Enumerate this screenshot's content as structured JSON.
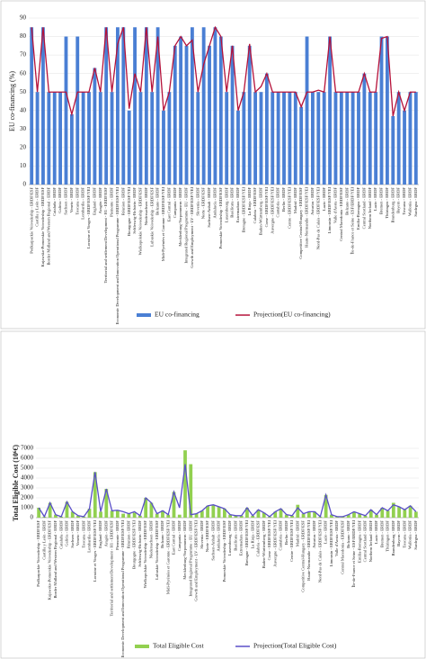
{
  "chart_data": [
    {
      "type": "bar",
      "y_label": "EU co-financing (%)",
      "categories": [
        "Podkarpackie Voivodeship - ERDF/ESF",
        "Castilla y León - ERDF",
        "Kujawsko-Pomorskie Voivodeship - ERDF/ESF",
        "Border Midland and Western Regional - ERDF",
        "Cataluña - ERDF",
        "Galicia - ERDF",
        "Sachsen - ERDF",
        "Veneto - ERDF",
        "Toscana - ERDF",
        "Lombardia - ERDF",
        "Lorraine et Vosges - ERDF/ESF/YEI",
        "England - ERDF",
        "Aragón - ERDF",
        "Territorial and settlement Development - H1 - ERDF/ESF",
        "Piemonte - ERDF",
        "Economic Development and Innovation Operational Programme - ERDF/ESF/YEI",
        "Réunion - ERDF",
        "Bourgogne - ERDF/ESF/YEI",
        "Schleswig-Holstein - ERDF",
        "Wielkopolskie Voivodeship - ERDF/ESF",
        "Niedersachsen - ERDF",
        "Lubuskie Voivodeship - ERDF/ESF",
        "Bolzano - ERDF",
        "Midi-Pyrénées et Garonne - ERDF/ESF/YEI",
        "East Central - ERDF",
        "Campania - ERDF",
        "Mecklenburg-Vorpommern - ERDF",
        "Integrated Regional Programme - EU - ERDF",
        "Growth and Employment - LV - ERDF/ESF/YEI",
        "Slovenia - ERDF",
        "Norte - ERDF/ESF",
        "Sachsen-Anhalt - ERDF",
        "Andalucía - ERDF",
        "Pomorskie Voivodeship - ERDF/ESF",
        "Luxembourg - ERDF",
        "Basilicata - ERDF",
        "Extremadura - ERDF",
        "Bretagne - ERDF/ESF/YEI",
        "La Rioja - ERDF",
        "Calabria - ERDF/ESF",
        "Baden-Württemberg - ERDF",
        "Corse - ERDF/ESF/YEI",
        "Auvergne - ERDF/ESF/YEI",
        "Cantabria - ERDF",
        "Berlin - ERDF",
        "Centre - ERDF/ESF/YEI",
        "Madrid - ERDF",
        "Competitive Central-Hungary - ERDF/ESF",
        "Haute-Normandie - ERDF/ESF/YEI",
        "Asturias - ERDF",
        "Nord-Pas de Calais - ERDF/ESF/YEI",
        "Lazio - ERDF",
        "Limousin - ERDF/ESF/YEI",
        "Valle d'Aosta - ERDF",
        "Central Macedonia - ERDF/ESF",
        "Bolzano - ERDF",
        "Île-de-France et Seine - ESF/ERDF/YEI",
        "Emilia-Romagna - ERDF",
        "Central Scotland - ERDF",
        "Northern Ireland - ERDF",
        "Lazio - ERDF",
        "Bremen - ERDF",
        "Thüringen - ERDF",
        "Brandenburg - ERDF",
        "Bayern - ERDF",
        "Toscana - ERDF",
        "Wallonia - ERDF",
        "Sardegna - ERDF"
      ],
      "series": [
        {
          "name": "EU co-financing",
          "type": "bar",
          "color": "#4a7fd4",
          "values": [
            85,
            50,
            85,
            50,
            50,
            50,
            80,
            38,
            80,
            50,
            50,
            63,
            50,
            85,
            50,
            85,
            85,
            40,
            85,
            50,
            85,
            50,
            85,
            40,
            50,
            75,
            80,
            75,
            85,
            50,
            85,
            75,
            85,
            80,
            50,
            75,
            40,
            50,
            75,
            50,
            50,
            60,
            50,
            50,
            50,
            50,
            50,
            42,
            80,
            50,
            50,
            50,
            80,
            50,
            50,
            50,
            50,
            50,
            60,
            50,
            50,
            80,
            80,
            37,
            50,
            40,
            50,
            50
          ]
        },
        {
          "name": "Projection(EU co-financing)",
          "type": "line",
          "color": "#b5123a",
          "values": [
            85,
            50,
            85,
            50,
            50,
            50,
            50,
            38,
            50,
            50,
            50,
            63,
            50,
            85,
            50,
            76,
            85,
            41,
            60,
            50,
            85,
            50,
            80,
            40,
            50,
            75,
            80,
            75,
            78,
            50,
            65,
            75,
            85,
            80,
            50,
            75,
            40,
            50,
            76,
            50,
            53,
            60,
            50,
            50,
            50,
            50,
            50,
            42,
            50,
            50,
            51,
            50,
            80,
            50,
            50,
            50,
            50,
            50,
            60,
            50,
            50,
            79,
            80,
            37,
            50,
            40,
            50,
            50
          ]
        }
      ],
      "ylim": [
        0,
        90
      ],
      "yticks": [
        0,
        10,
        20,
        30,
        40,
        50,
        60,
        70,
        80,
        90
      ]
    },
    {
      "type": "bar",
      "y_label": "Total Eligible Cost (10⁶€)",
      "categories": [
        "Podkarpackie Voivodeship - ERDF/ESF",
        "Castilla y León - ERDF",
        "Kujawsko-Pomorskie Voivodeship - ERDF/ESF",
        "Border Midland and Western Regional - ERDF",
        "Cataluña - ERDF",
        "Galicia - ERDF",
        "Sachsen - ERDF",
        "Veneto - ERDF",
        "Toscana - ERDF",
        "Lombardia - ERDF",
        "Lorraine et Vosges - ERDF/ESF/YEI",
        "England - ERDF",
        "Aragón - ERDF",
        "Territorial and settlement Development - H1 - ERDF/ESF",
        "Piemonte - ERDF",
        "Economic Development and Innovation Operational Programme - ERDF/ESF/YEI",
        "Réunion - ERDF",
        "Bourgogne - ERDF/ESF/YEI",
        "Schleswig-Holstein - ERDF",
        "Wielkopolskie Voivodeship - ERDF/ESF",
        "Niedersachsen - ERDF",
        "Lubuskie Voivodeship - ERDF/ESF",
        "Bolzano - ERDF",
        "Midi-Pyrénées et Garonne - ERDF/ESF/YEI",
        "East Central - ERDF",
        "Campania - ERDF",
        "Mecklenburg-Vorpommern - ERDF",
        "Integrated Regional Programme - EU - ERDF",
        "Growth and Employment - LV - ERDF/ESF/YEI",
        "Slovenia - ERDF",
        "Norte - ERDF/ESF",
        "Sachsen-Anhalt - ERDF",
        "Andalucía - ERDF",
        "Pomorskie Voivodeship - ERDF/ESF",
        "Luxembourg - ERDF",
        "Basilicata - ERDF",
        "Extremadura - ERDF",
        "Bretagne - ERDF/ESF/YEI",
        "La Rioja - ERDF",
        "Calabria - ERDF/ESF",
        "Baden-Württemberg - ERDF",
        "Corse - ERDF/ESF/YEI",
        "Auvergne - ERDF/ESF/YEI",
        "Cantabria - ERDF",
        "Berlin - ERDF",
        "Centre - ERDF/ESF/YEI",
        "Madrid - ERDF",
        "Competitive Central-Hungary - ERDF/ESF",
        "Haute-Normandie - ERDF/ESF/YEI",
        "Asturias - ERDF",
        "Nord-Pas de Calais - ERDF/ESF/YEI",
        "Lazio - ERDF",
        "Limousin - ERDF/ESF/YEI",
        "Valle d'Aosta - ERDF",
        "Central Macedonia - ERDF/ESF",
        "Bolzano - ERDF",
        "Île-de-France et Seine - ESF/ERDF/YEI",
        "Emilia-Romagna - ERDF",
        "Central Scotland - ERDF",
        "Northern Ireland - ERDF",
        "Lazio - ERDF",
        "Bremen - ERDF",
        "Thüringen - ERDF",
        "Brandenburg - ERDF",
        "Bayern - ERDF",
        "Toscana - ERDF",
        "Wallonia - ERDF",
        "Sardegna - ERDF"
      ],
      "series": [
        {
          "name": "Total Eligible Cost",
          "type": "bar",
          "color": "#92d050",
          "values": [
            1000,
            100,
            1500,
            300,
            100,
            1600,
            600,
            200,
            100,
            900,
            4600,
            600,
            2900,
            700,
            700,
            400,
            400,
            500,
            200,
            2000,
            1500,
            400,
            700,
            300,
            2600,
            300,
            6800,
            5400,
            400,
            700,
            1200,
            1300,
            1100,
            900,
            300,
            200,
            200,
            1000,
            200,
            800,
            500,
            100,
            600,
            900,
            300,
            200,
            1300,
            400,
            600,
            600,
            100,
            2300,
            300,
            100,
            100,
            300,
            600,
            400,
            200,
            800,
            300,
            1000,
            700,
            1500,
            1100,
            800,
            1200,
            600
          ]
        },
        {
          "name": "Projection(Total Eligible Cost)",
          "type": "line",
          "color": "#5a4fc8",
          "values": [
            1000,
            100,
            1500,
            300,
            100,
            1600,
            600,
            200,
            100,
            900,
            4600,
            600,
            2900,
            700,
            750,
            600,
            400,
            600,
            200,
            2000,
            1500,
            400,
            700,
            300,
            2600,
            1000,
            5400,
            300,
            400,
            700,
            1200,
            1300,
            1100,
            900,
            300,
            200,
            200,
            1000,
            200,
            800,
            500,
            100,
            600,
            900,
            300,
            200,
            1000,
            400,
            600,
            600,
            100,
            2300,
            300,
            100,
            100,
            300,
            600,
            400,
            200,
            800,
            300,
            1000,
            700,
            1300,
            1100,
            800,
            1200,
            600
          ]
        }
      ],
      "ylim": [
        0,
        7000
      ],
      "yticks": [
        0,
        1000,
        2000,
        3000,
        4000,
        5000,
        6000,
        7000
      ]
    }
  ]
}
